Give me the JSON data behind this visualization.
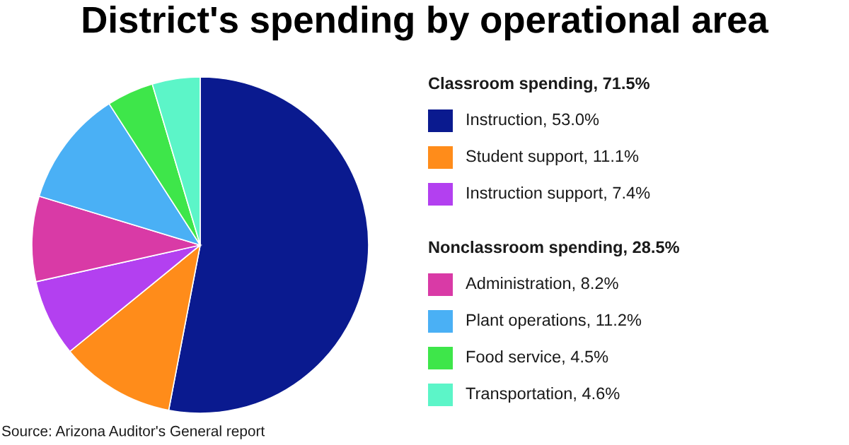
{
  "chart_data": {
    "type": "pie",
    "title": "District's spending by operational area",
    "categories": [
      "Instruction, 53.0%",
      "Student support, 11.1%",
      "Instruction support, 7.4%",
      "Administration, 8.2%",
      "Plant operations, 11.2%",
      "Food service, 4.5%",
      "Transportation, 4.6%"
    ],
    "values": [
      53.0,
      11.1,
      7.4,
      8.2,
      11.2,
      4.5,
      4.6
    ],
    "colors": [
      "#0a1a8f",
      "#ff8c1a",
      "#b340f0",
      "#d93aa6",
      "#4ab0f5",
      "#3ee64a",
      "#5cf5c8"
    ],
    "legend": "right",
    "annotations": [
      "Classroom spending, 71.5%",
      "Nonclassroom spending, 28.5%",
      "Source: Arizona Auditor's General report"
    ]
  }
}
